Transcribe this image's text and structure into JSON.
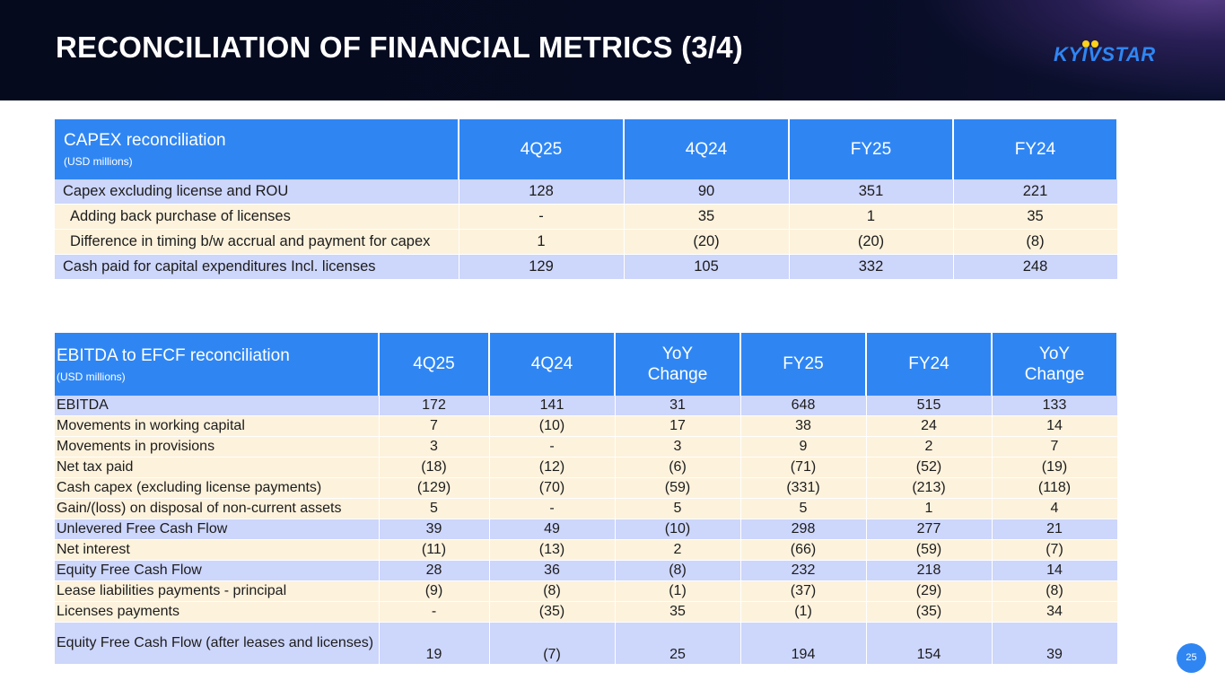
{
  "header": {
    "title": "RECONCILIATION OF FINANCIAL METRICS (3/4)",
    "logo_text": "KYIVSTAR",
    "logo_dot_color": "#ffd21a",
    "accent": "#2f86f3"
  },
  "capex": {
    "title": "CAPEX reconciliation",
    "unit": "(USD millions)",
    "columns": [
      "4Q25",
      "4Q24",
      "FY25",
      "FY24"
    ],
    "rows": [
      {
        "label": "Capex excluding license and ROU",
        "values": [
          "128",
          "90",
          "351",
          "221"
        ]
      },
      {
        "label": "Adding back purchase of licenses",
        "values": [
          "-",
          "35",
          "1",
          "35"
        ]
      },
      {
        "label": "Difference in timing b/w accrual and payment for capex",
        "values": [
          "1",
          "(20)",
          "(20)",
          "(8)"
        ]
      },
      {
        "label": "Cash paid for capital expenditures Incl. licenses",
        "values": [
          "129",
          "105",
          "332",
          "248"
        ]
      }
    ]
  },
  "ebitda": {
    "title": "EBITDA to EFCF reconciliation",
    "unit": "(USD millions)",
    "columns": [
      "4Q25",
      "4Q24",
      "YoY Change",
      "FY25",
      "FY24",
      "YoY Change"
    ],
    "rows": [
      {
        "label": "EBITDA",
        "values": [
          "172",
          "141",
          "31",
          "648",
          "515",
          "133"
        ]
      },
      {
        "label": "Movements in working capital",
        "values": [
          "7",
          "(10)",
          "17",
          "38",
          "24",
          "14"
        ]
      },
      {
        "label": "Movements in provisions",
        "values": [
          "3",
          "-",
          "3",
          "9",
          "2",
          "7"
        ]
      },
      {
        "label": "Net tax paid",
        "values": [
          "(18)",
          "(12)",
          "(6)",
          "(71)",
          "(52)",
          "(19)"
        ]
      },
      {
        "label": "Cash capex (excluding license payments)",
        "values": [
          "(129)",
          "(70)",
          "(59)",
          "(331)",
          "(213)",
          "(118)"
        ]
      },
      {
        "label": "Gain/(loss) on disposal of non-current assets",
        "values": [
          "5",
          "-",
          "5",
          "5",
          "1",
          "4"
        ]
      },
      {
        "label": "Unlevered Free Cash Flow",
        "values": [
          "39",
          "49",
          "(10)",
          "298",
          "277",
          "21"
        ]
      },
      {
        "label": "Net interest",
        "values": [
          "(11)",
          "(13)",
          "2",
          "(66)",
          "(59)",
          "(7)"
        ]
      },
      {
        "label": "Equity Free Cash Flow",
        "values": [
          "28",
          "36",
          "(8)",
          "232",
          "218",
          "14"
        ]
      },
      {
        "label": "Lease liabilities payments - principal",
        "values": [
          "(9)",
          "(8)",
          "(1)",
          "(37)",
          "(29)",
          "(8)"
        ]
      },
      {
        "label": "Licenses payments",
        "values": [
          "-",
          "(35)",
          "35",
          "(1)",
          "(35)",
          "34"
        ]
      },
      {
        "label": "Equity Free Cash Flow (after leases and licenses)",
        "values": [
          "19",
          "(7)",
          "25",
          "194",
          "154",
          "39"
        ]
      }
    ]
  },
  "page_number": "25"
}
